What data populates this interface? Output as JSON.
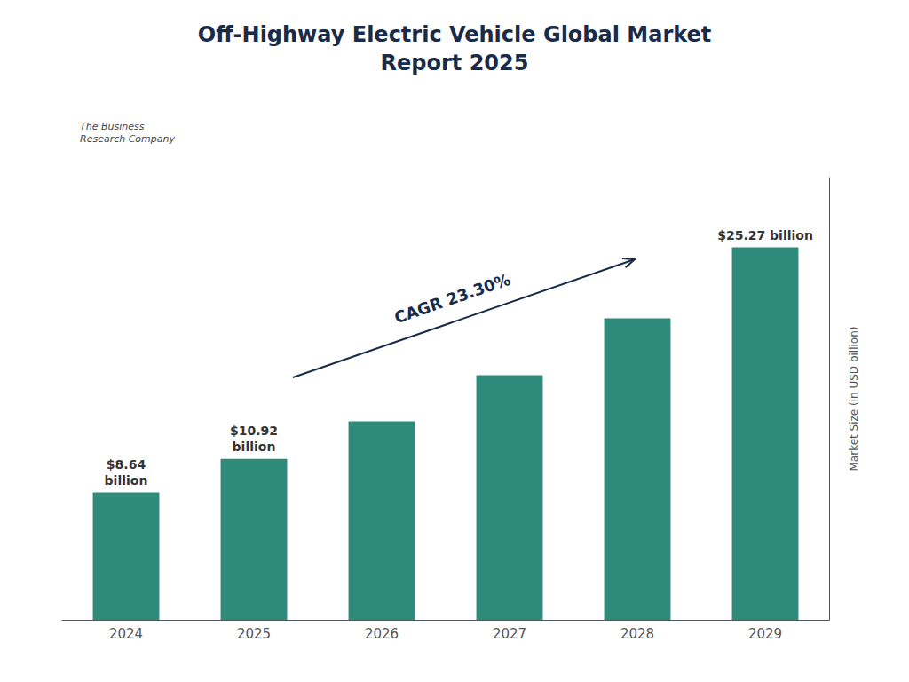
{
  "chart_data": {
    "type": "bar",
    "title": "Off-Highway Electric Vehicle Global Market\nReport 2025",
    "ylabel": "Market Size (in USD billion)",
    "categories": [
      "2024",
      "2025",
      "2026",
      "2027",
      "2028",
      "2029"
    ],
    "values": [
      8.64,
      10.92,
      13.47,
      16.6,
      20.45,
      25.27
    ],
    "value_labels": [
      "$8.64\nbillion",
      "$10.92\nbillion",
      null,
      null,
      null,
      "$25.27 billion"
    ],
    "color": "#2e8b7a",
    "ylim": [
      0,
      30
    ],
    "grid": false,
    "tick_labels": "x",
    "annotations": [
      "CAGR 23.30%",
      "The Business\nResearch Company"
    ]
  }
}
